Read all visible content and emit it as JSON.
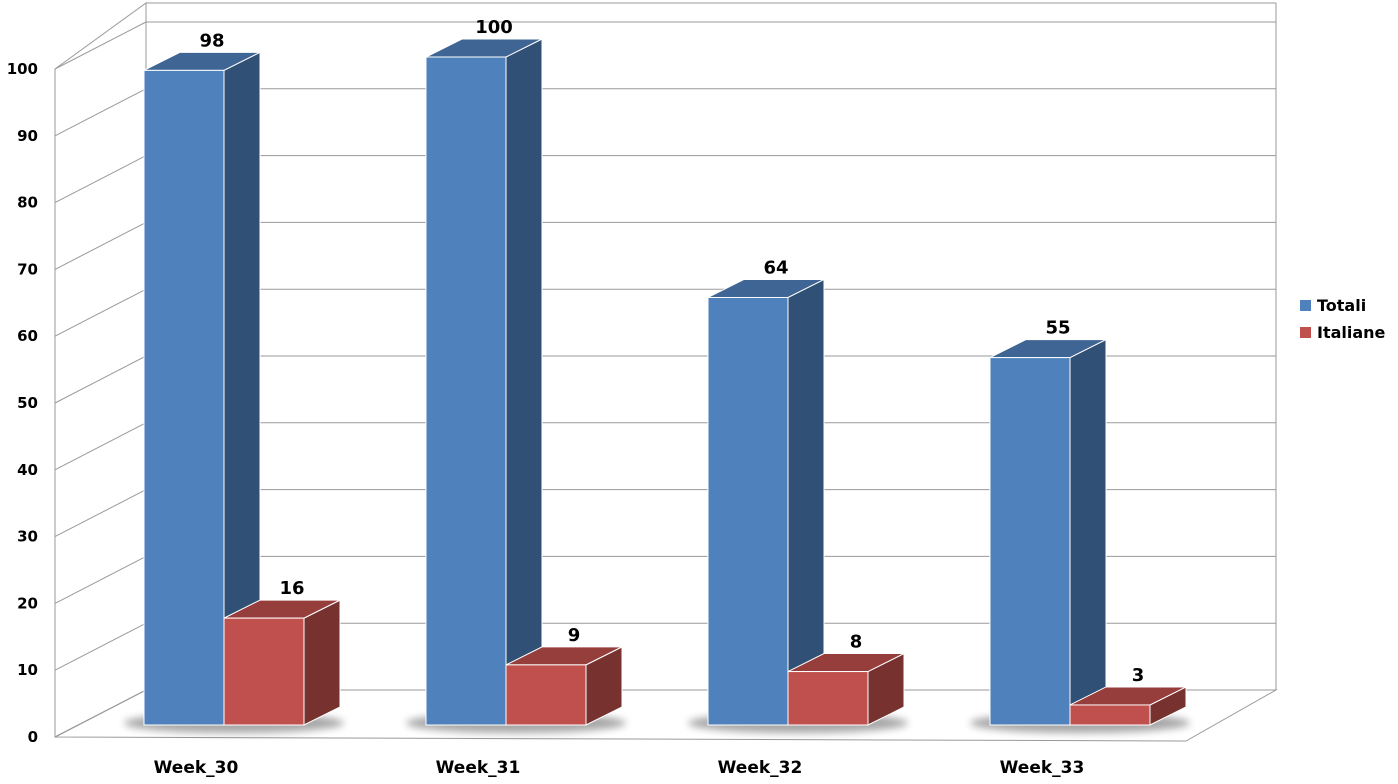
{
  "chart_data": {
    "type": "bar",
    "categories": [
      "Week_30",
      "Week_31",
      "Week_32",
      "Week_33"
    ],
    "series": [
      {
        "name": "Totali",
        "values": [
          98,
          100,
          64,
          55
        ],
        "color": "#4f81bd"
      },
      {
        "name": "Italiane",
        "values": [
          16,
          9,
          8,
          3
        ],
        "color": "#c0504d"
      }
    ],
    "ylim": [
      0,
      100
    ],
    "yticks": [
      0,
      10,
      20,
      30,
      40,
      50,
      60,
      70,
      80,
      90,
      100
    ],
    "grid": true,
    "legend_position": "right",
    "style": "3d-clustered-column"
  }
}
